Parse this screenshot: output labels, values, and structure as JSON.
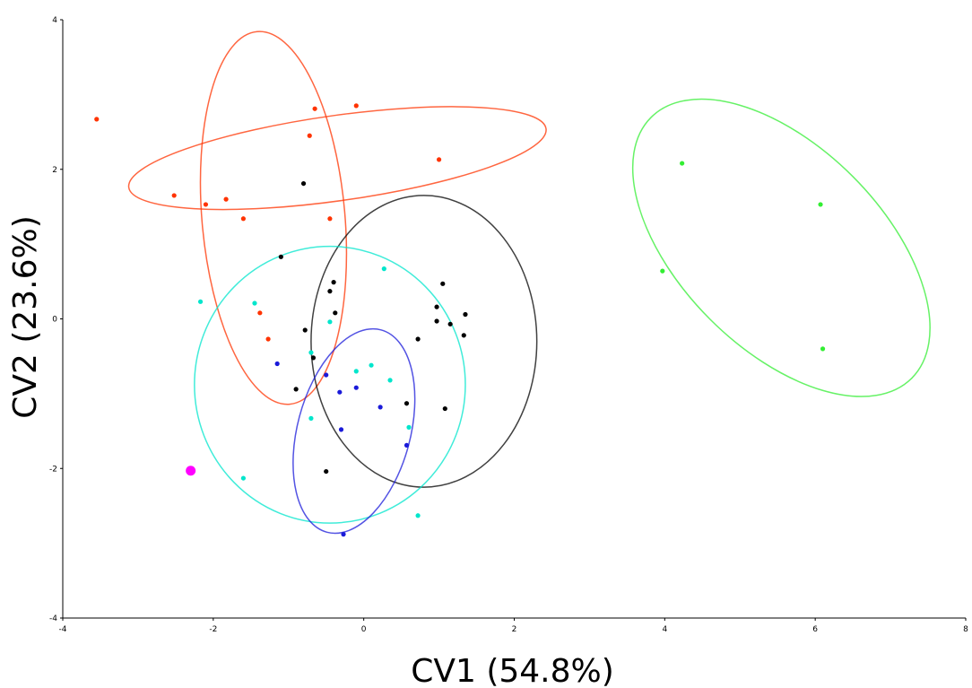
{
  "chart_data": {
    "type": "scatter",
    "title": "",
    "xlabel": "CV1 (54.8%)",
    "ylabel": "CV2 (23.6%)",
    "xlim": [
      -4,
      8
    ],
    "ylim": [
      -4,
      4
    ],
    "xticks": [
      "-4",
      "-2",
      "0",
      "2",
      "4",
      "6",
      "8"
    ],
    "yticks": [
      "-4",
      "-2",
      "0",
      "2",
      "4"
    ],
    "grid": false,
    "legend": "none",
    "series": [
      {
        "color": "#ff3300",
        "points": [
          [
            -3.55,
            2.67
          ],
          [
            -2.52,
            1.65
          ],
          [
            -2.1,
            1.53
          ],
          [
            -1.83,
            1.6
          ],
          [
            -1.6,
            1.34
          ],
          [
            -0.72,
            2.45
          ],
          [
            -0.65,
            2.81
          ],
          [
            -0.1,
            2.85
          ],
          [
            -0.45,
            1.34
          ],
          [
            1.0,
            2.13
          ],
          [
            -1.38,
            0.08
          ],
          [
            -1.27,
            -0.27
          ]
        ],
        "ellipses": [
          {
            "cx": -0.35,
            "cy": 2.15,
            "rx": 2.8,
            "ry": 0.57,
            "angle_deg": 8
          },
          {
            "cx": -1.2,
            "cy": 1.35,
            "rx": 0.95,
            "ry": 2.5,
            "angle_deg": 5
          }
        ]
      },
      {
        "color": "#000000",
        "points": [
          [
            -0.8,
            1.81
          ],
          [
            -1.1,
            0.83
          ],
          [
            -0.45,
            0.37
          ],
          [
            -0.4,
            0.49
          ],
          [
            -0.38,
            0.08
          ],
          [
            -0.78,
            -0.15
          ],
          [
            -0.67,
            -0.52
          ],
          [
            -0.9,
            -0.94
          ],
          [
            1.05,
            0.47
          ],
          [
            0.97,
            0.16
          ],
          [
            0.97,
            -0.03
          ],
          [
            1.15,
            -0.07
          ],
          [
            1.35,
            0.06
          ],
          [
            1.33,
            -0.22
          ],
          [
            0.72,
            -0.27
          ],
          [
            0.57,
            -1.13
          ],
          [
            1.08,
            -1.2
          ],
          [
            -0.5,
            -2.04
          ]
        ],
        "ellipses": [
          {
            "cx": 0.8,
            "cy": -0.3,
            "rx": 1.5,
            "ry": 1.95,
            "angle_deg": 0
          }
        ]
      },
      {
        "color": "#00e6cc",
        "points": [
          [
            -2.17,
            0.23
          ],
          [
            -1.45,
            0.21
          ],
          [
            -0.45,
            -0.04
          ],
          [
            0.27,
            0.67
          ],
          [
            -0.7,
            -0.45
          ],
          [
            -0.1,
            -0.7
          ],
          [
            0.1,
            -0.62
          ],
          [
            0.35,
            -0.82
          ],
          [
            -0.7,
            -1.33
          ],
          [
            0.6,
            -1.45
          ],
          [
            -1.6,
            -2.13
          ],
          [
            0.72,
            -2.63
          ]
        ],
        "ellipses": [
          {
            "cx": -0.45,
            "cy": -0.88,
            "rx": 1.8,
            "ry": 1.85,
            "angle_deg": 0
          }
        ]
      },
      {
        "color": "#1a1ad9",
        "points": [
          [
            -1.15,
            -0.6
          ],
          [
            -0.5,
            -0.75
          ],
          [
            -0.32,
            -0.98
          ],
          [
            -0.1,
            -0.92
          ],
          [
            0.22,
            -1.18
          ],
          [
            -0.3,
            -1.48
          ],
          [
            0.57,
            -1.69
          ],
          [
            -0.27,
            -2.88
          ]
        ],
        "ellipses": [
          {
            "cx": -0.13,
            "cy": -1.5,
            "rx": 0.75,
            "ry": 1.4,
            "angle_deg": -15
          }
        ]
      },
      {
        "color": "#33ee33",
        "points": [
          [
            4.23,
            2.08
          ],
          [
            6.07,
            1.53
          ],
          [
            3.97,
            0.64
          ],
          [
            6.1,
            -0.4
          ]
        ],
        "ellipses": [
          {
            "cx": 5.55,
            "cy": 0.95,
            "rx": 2.45,
            "ry": 1.35,
            "angle_deg": -45
          }
        ]
      },
      {
        "color": "#ff00ff",
        "marker_size": "large",
        "points": [
          [
            -2.3,
            -2.03
          ]
        ],
        "ellipses": []
      }
    ]
  }
}
